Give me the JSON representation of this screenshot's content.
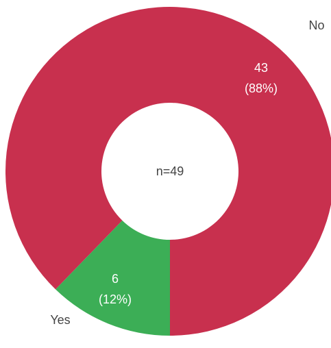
{
  "chart_data": {
    "type": "donut",
    "center_label": "n=49",
    "categories": [
      "No",
      "Yes"
    ],
    "values": [
      43,
      6
    ],
    "percentages": [
      88,
      12
    ],
    "percent_labels": [
      "(88%)",
      "(12%)"
    ],
    "colors": [
      "#c8304e",
      "#3cae56"
    ]
  }
}
